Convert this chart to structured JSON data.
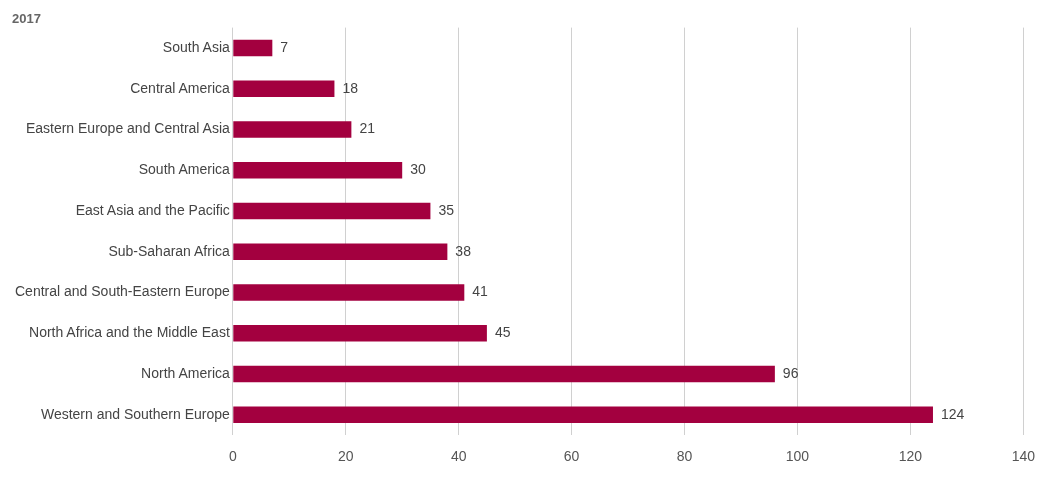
{
  "chart_data": {
    "type": "bar",
    "orientation": "horizontal",
    "title": "2017",
    "categories": [
      "South Asia",
      "Central America",
      "Eastern Europe and Central Asia",
      "South America",
      "East Asia and the Pacific",
      "Sub-Saharan Africa",
      "Central and South-Eastern Europe",
      "North Africa and the Middle East",
      "North America",
      "Western and Southern Europe"
    ],
    "values": [
      7,
      18,
      21,
      30,
      35,
      38,
      41,
      45,
      96,
      124
    ],
    "color": "#a3003f",
    "xlim": [
      0,
      140
    ],
    "xticks": [
      0,
      20,
      40,
      60,
      80,
      100,
      120,
      140
    ],
    "grid": "x",
    "data_labels": true,
    "legend": false
  }
}
